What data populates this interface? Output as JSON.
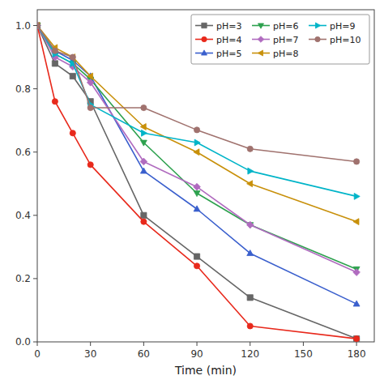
{
  "chart_data": {
    "type": "line",
    "xlabel": "Time (min)",
    "x": [
      0,
      10,
      20,
      30,
      60,
      90,
      120,
      180
    ],
    "xlim": [
      0,
      190
    ],
    "ylim": [
      0.0,
      1.05
    ],
    "xticks": [
      0,
      30,
      60,
      90,
      120,
      150,
      180
    ],
    "yticks": [
      {
        "value": 0.0,
        "label": "0.0"
      },
      0.2,
      0.4,
      0.6,
      0.8,
      {
        "value": 1.0,
        "label": "1.0"
      }
    ],
    "grid": false,
    "legend": "upper right",
    "series": [
      {
        "name": "pH=3",
        "color": "#666666",
        "marker": "square",
        "values": [
          1.0,
          0.88,
          0.84,
          0.76,
          0.4,
          0.27,
          0.14,
          0.01
        ]
      },
      {
        "name": "pH=4",
        "color": "#e8291c",
        "marker": "circle",
        "values": [
          1.0,
          0.76,
          0.66,
          0.56,
          0.38,
          0.24,
          0.05,
          0.01
        ]
      },
      {
        "name": "pH=5",
        "color": "#3a5fcd",
        "marker": "triangle-up",
        "values": [
          1.0,
          0.92,
          0.89,
          0.84,
          0.54,
          0.42,
          0.28,
          0.12
        ]
      },
      {
        "name": "pH=6",
        "color": "#2da14e",
        "marker": "triangle-down",
        "values": [
          1.0,
          0.91,
          0.88,
          0.83,
          0.63,
          0.47,
          0.37,
          0.23
        ]
      },
      {
        "name": "pH=7",
        "color": "#b06bbf",
        "marker": "diamond",
        "values": [
          1.0,
          0.9,
          0.87,
          0.82,
          0.57,
          0.49,
          0.37,
          0.22
        ]
      },
      {
        "name": "pH=8",
        "color": "#c8900a",
        "marker": "triangle-left",
        "values": [
          1.0,
          0.93,
          0.9,
          0.84,
          0.68,
          0.6,
          0.5,
          0.38
        ]
      },
      {
        "name": "pH=9",
        "color": "#00b4c8",
        "marker": "triangle-right",
        "values": [
          1.0,
          0.91,
          0.88,
          0.75,
          0.66,
          0.63,
          0.54,
          0.46
        ]
      },
      {
        "name": "pH=10",
        "color": "#a0726e",
        "marker": "circle",
        "values": [
          1.0,
          0.92,
          0.9,
          0.74,
          0.74,
          0.67,
          0.61,
          0.57
        ]
      }
    ]
  }
}
